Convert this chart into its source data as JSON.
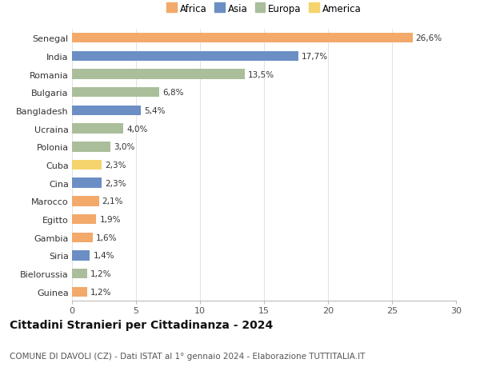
{
  "categories": [
    "Guinea",
    "Bielorussia",
    "Siria",
    "Gambia",
    "Egitto",
    "Marocco",
    "Cina",
    "Cuba",
    "Polonia",
    "Ucraina",
    "Bangladesh",
    "Bulgaria",
    "Romania",
    "India",
    "Senegal"
  ],
  "values": [
    1.2,
    1.2,
    1.4,
    1.6,
    1.9,
    2.1,
    2.3,
    2.3,
    3.0,
    4.0,
    5.4,
    6.8,
    13.5,
    17.7,
    26.6
  ],
  "labels": [
    "1,2%",
    "1,2%",
    "1,4%",
    "1,6%",
    "1,9%",
    "2,1%",
    "2,3%",
    "2,3%",
    "3,0%",
    "4,0%",
    "5,4%",
    "6,8%",
    "13,5%",
    "17,7%",
    "26,6%"
  ],
  "continents": [
    "Africa",
    "Europa",
    "Asia",
    "Africa",
    "Africa",
    "Africa",
    "Asia",
    "America",
    "Europa",
    "Europa",
    "Asia",
    "Europa",
    "Europa",
    "Asia",
    "Africa"
  ],
  "colors": {
    "Africa": "#F2A96A",
    "Asia": "#6B8FC4",
    "Europa": "#ABBE9B",
    "America": "#F5D46E"
  },
  "legend_order": [
    "Africa",
    "Asia",
    "Europa",
    "America"
  ],
  "legend_colors": [
    "#F2A96A",
    "#6B8FC4",
    "#ABBE9B",
    "#F5D46E"
  ],
  "title": "Cittadini Stranieri per Cittadinanza - 2024",
  "subtitle": "COMUNE DI DAVOLI (CZ) - Dati ISTAT al 1° gennaio 2024 - Elaborazione TUTTITALIA.IT",
  "xlim": [
    0,
    30
  ],
  "xticks": [
    0,
    5,
    10,
    15,
    20,
    25,
    30
  ],
  "background_color": "#ffffff",
  "bar_height": 0.55,
  "title_fontsize": 10,
  "subtitle_fontsize": 7.5,
  "label_fontsize": 7.5,
  "ytick_fontsize": 8,
  "xtick_fontsize": 8,
  "legend_fontsize": 8.5
}
